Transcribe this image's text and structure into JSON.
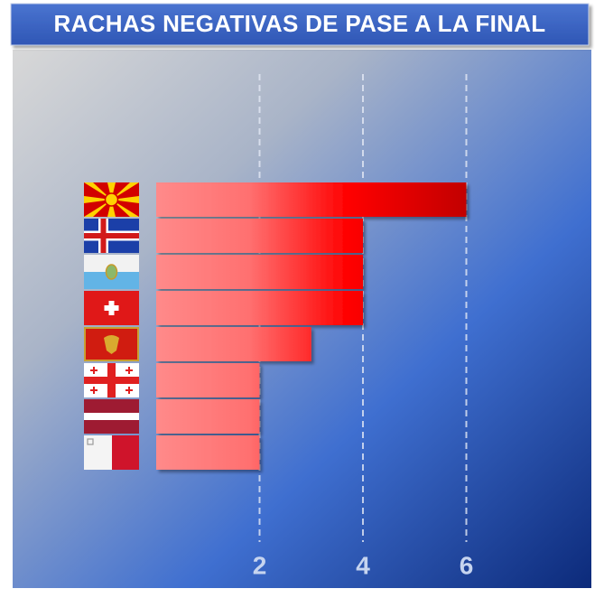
{
  "chart_data": {
    "type": "bar",
    "orientation": "horizontal",
    "title": "RACHAS NEGATIVAS DE PASE A LA FINAL",
    "categories": [
      null,
      null,
      null,
      null,
      null,
      null,
      null,
      null
    ],
    "values": [
      6,
      4,
      4,
      4,
      3,
      2,
      2,
      2
    ],
    "color": "#ff0000",
    "xlim": [
      0,
      8
    ],
    "xticks": [
      2,
      4,
      6
    ],
    "grid": true
  }
}
